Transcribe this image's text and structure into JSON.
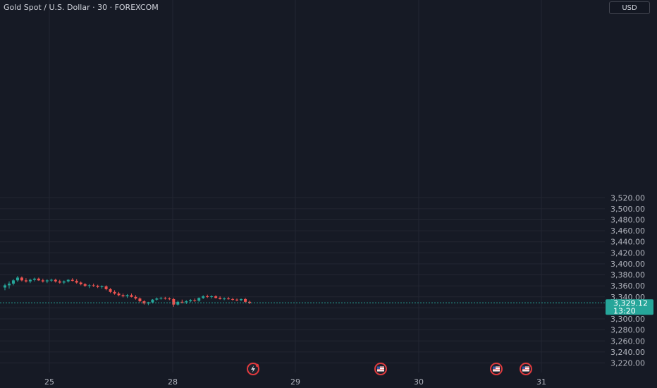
{
  "header": {
    "title": "Gold Spot / U.S. Dollar · 30 · FOREXCOM",
    "currency": "USD"
  },
  "colors": {
    "background": "#161a25",
    "grid": "#232632",
    "up": "#26a69a",
    "down": "#ef5350",
    "text": "#b2b5be",
    "last_price_line": "#26a69a",
    "event_icon": "#e03a3e"
  },
  "price_badge": {
    "price": "3,329.12",
    "countdown": "13:20"
  },
  "event_icons": [
    "lightning-icon",
    "us-flag-icon",
    "us-flag-icon",
    "us-flag-icon"
  ],
  "chart_data": {
    "type": "candlestick",
    "title": "Gold Spot / U.S. Dollar · 30 · FOREXCOM",
    "ylim": [
      3215,
      3535
    ],
    "y_ticks": [
      "3,220.00",
      "3,240.00",
      "3,260.00",
      "3,280.00",
      "3,300.00",
      "3,320.00",
      "3,340.00",
      "3,360.00",
      "3,380.00",
      "3,400.00",
      "3,420.00",
      "3,440.00",
      "3,460.00",
      "3,480.00",
      "3,500.00",
      "3,520.00"
    ],
    "x_ticks": [
      "25",
      "28",
      "29",
      "30",
      "31"
    ],
    "last_price": 3329.12,
    "grid": true,
    "ohlc": [
      [
        3357,
        3364,
        3352,
        3361
      ],
      [
        3361,
        3368,
        3355,
        3364
      ],
      [
        3364,
        3372,
        3361,
        3370
      ],
      [
        3370,
        3378,
        3367,
        3375
      ],
      [
        3375,
        3377,
        3368,
        3370
      ],
      [
        3370,
        3374,
        3366,
        3368
      ],
      [
        3368,
        3373,
        3365,
        3371
      ],
      [
        3371,
        3375,
        3368,
        3373
      ],
      [
        3373,
        3375,
        3369,
        3370
      ],
      [
        3370,
        3373,
        3366,
        3368
      ],
      [
        3368,
        3372,
        3365,
        3370
      ],
      [
        3370,
        3373,
        3367,
        3371
      ],
      [
        3371,
        3373,
        3366,
        3368
      ],
      [
        3368,
        3371,
        3364,
        3366
      ],
      [
        3366,
        3370,
        3363,
        3368
      ],
      [
        3368,
        3372,
        3366,
        3371
      ],
      [
        3371,
        3374,
        3368,
        3369
      ],
      [
        3369,
        3372,
        3364,
        3366
      ],
      [
        3366,
        3368,
        3361,
        3363
      ],
      [
        3363,
        3365,
        3358,
        3360
      ],
      [
        3360,
        3363,
        3356,
        3361
      ],
      [
        3361,
        3364,
        3358,
        3360
      ],
      [
        3360,
        3362,
        3356,
        3358
      ],
      [
        3358,
        3361,
        3355,
        3359
      ],
      [
        3359,
        3361,
        3352,
        3354
      ],
      [
        3354,
        3356,
        3347,
        3349
      ],
      [
        3349,
        3352,
        3344,
        3346
      ],
      [
        3346,
        3349,
        3341,
        3343
      ],
      [
        3343,
        3346,
        3339,
        3341
      ],
      [
        3341,
        3345,
        3338,
        3343
      ],
      [
        3343,
        3346,
        3339,
        3340
      ],
      [
        3340,
        3343,
        3335,
        3337
      ],
      [
        3337,
        3339,
        3330,
        3332
      ],
      [
        3332,
        3334,
        3326,
        3328
      ],
      [
        3328,
        3331,
        3325,
        3330
      ],
      [
        3330,
        3336,
        3328,
        3335
      ],
      [
        3335,
        3339,
        3333,
        3337
      ],
      [
        3337,
        3340,
        3335,
        3338
      ],
      [
        3338,
        3340,
        3335,
        3337
      ],
      [
        3337,
        3339,
        3334,
        3336
      ],
      [
        3336,
        3338,
        3322,
        3326
      ],
      [
        3326,
        3333,
        3324,
        3331
      ],
      [
        3331,
        3335,
        3328,
        3330
      ],
      [
        3330,
        3334,
        3327,
        3332
      ],
      [
        3332,
        3336,
        3330,
        3334
      ],
      [
        3334,
        3337,
        3331,
        3333
      ],
      [
        3333,
        3339,
        3331,
        3338
      ],
      [
        3338,
        3343,
        3336,
        3341
      ],
      [
        3341,
        3344,
        3338,
        3340
      ],
      [
        3340,
        3343,
        3337,
        3341
      ],
      [
        3341,
        3343,
        3337,
        3338
      ],
      [
        3338,
        3341,
        3335,
        3336
      ],
      [
        3336,
        3339,
        3334,
        3337
      ],
      [
        3337,
        3340,
        3335,
        3336
      ],
      [
        3336,
        3338,
        3333,
        3335
      ],
      [
        3335,
        3337,
        3332,
        3334
      ],
      [
        3334,
        3337,
        3332,
        3336
      ],
      [
        3336,
        3338,
        3329,
        3331
      ],
      [
        3331,
        3333,
        3327,
        3329
      ]
    ]
  }
}
